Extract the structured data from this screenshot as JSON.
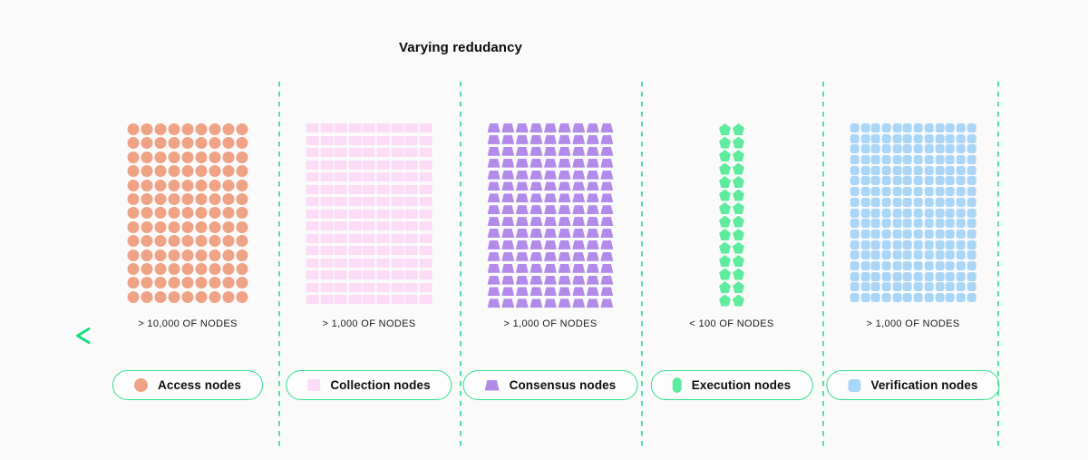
{
  "title": "Varying redudancy",
  "colors": {
    "background": "#fafafa",
    "divider": "#55e0a0",
    "legend_border": "#2ee08a",
    "arrow_start": "#17df7d",
    "arrow_end": "#0a7a4a",
    "label_text": "#1b1b1b"
  },
  "axis": {
    "direction": "left",
    "description": "horizontal arrow pointing left under the node count labels"
  },
  "groups": [
    {
      "id": "access",
      "count_label": "> 10,000 OF NODES",
      "legend_label": "Access nodes",
      "shape": "circle",
      "legend_shape": "circle",
      "color": "#efa284",
      "grid": {
        "columns": 9,
        "rows": 13
      }
    },
    {
      "id": "collection",
      "count_label": "> 1,000 OF NODES",
      "legend_label": "Collection nodes",
      "shape": "rect",
      "legend_shape": "rect",
      "color": "#fbdbf6",
      "grid": {
        "columns": 9,
        "rows": 15
      }
    },
    {
      "id": "consensus",
      "count_label": "> 1,000 OF NODES",
      "legend_label": "Consensus nodes",
      "shape": "trapezoid",
      "legend_shape": "trapezoid",
      "color": "#b28bea",
      "grid": {
        "columns": 9,
        "rows": 16
      }
    },
    {
      "id": "execution",
      "count_label": "< 100 OF NODES",
      "legend_label": "Execution nodes",
      "shape": "pentagon",
      "legend_shape": "capsule",
      "color": "#5feb9e",
      "grid": {
        "columns": 2,
        "rows": 14
      }
    },
    {
      "id": "verification",
      "count_label": "> 1,000 OF NODES",
      "legend_label": "Verification nodes",
      "shape": "rounded-square",
      "legend_shape": "rounded-square",
      "color": "#a9d5f6",
      "grid": {
        "columns": 12,
        "rows": 17
      }
    }
  ]
}
